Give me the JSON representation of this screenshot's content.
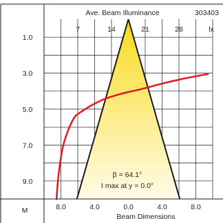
{
  "chart_data": {
    "type": "line",
    "title": "Ave. Beam Illuminance",
    "code": "303403",
    "top_axis": {
      "ticks": [
        "7",
        "14",
        "21",
        "28"
      ],
      "tick_values": [
        7,
        14,
        21,
        28
      ],
      "unit": "lx",
      "range": [
        0,
        35
      ]
    },
    "left_axis": {
      "unit": "M",
      "ticks": [
        "1.0",
        "3.0",
        "5.0",
        "7.0",
        "9.0"
      ],
      "tick_values": [
        1,
        3,
        5,
        7,
        9
      ],
      "range": [
        0,
        10
      ],
      "inverted": true
    },
    "bottom_axis": {
      "label": "Beam Dimensions",
      "ticks": [
        "8.0",
        "4.0",
        "0.0",
        "4.0",
        "8.0"
      ],
      "tick_values": [
        -8,
        -4,
        0,
        4,
        8
      ],
      "range": [
        -10,
        10
      ]
    },
    "grid": true,
    "beam_cone": {
      "apex_distance": 0,
      "max_distance": 10,
      "half_width_at_max": 6.1,
      "fill_top": "#f7dc1e",
      "fill_bottom": "#fffbe8",
      "stroke": "#1a1a1a"
    },
    "illuminance_curve": {
      "color": "#e02020",
      "points": [
        [
          2.6,
          10.0
        ],
        [
          3.0,
          8.7
        ],
        [
          4.0,
          7.0
        ],
        [
          6.0,
          5.6
        ],
        [
          8.0,
          5.1
        ],
        [
          12.0,
          4.5
        ],
        [
          16.0,
          4.15
        ],
        [
          20.0,
          3.9
        ],
        [
          25.0,
          3.55
        ],
        [
          30.0,
          3.25
        ],
        [
          34.0,
          3.05
        ]
      ]
    },
    "annotations": [
      "β = 64.1°",
      "I max at y = 0.0°"
    ]
  }
}
